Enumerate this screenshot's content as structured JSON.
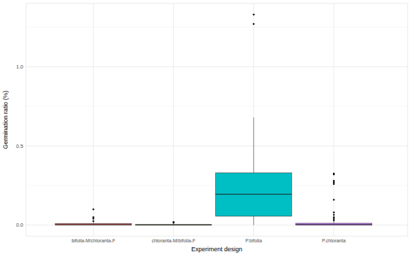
{
  "chart_data": {
    "type": "boxplot",
    "x_label": "Experiment design",
    "y_label": "Germination ratio (%)",
    "categories": [
      "bifolia-M/chloranta-F",
      "chloranta-M/bifolia-F",
      "P.bifolia",
      "P.chloranta"
    ],
    "colors": [
      "#F8766D",
      "#7CAE00",
      "#00BFC4",
      "#C77CFF"
    ],
    "boxes": [
      {
        "min": 0,
        "q1": 0,
        "median": 0.003,
        "q3": 0.01,
        "max": 0.02,
        "outliers": [
          0.1,
          0.05,
          0.04,
          0.025
        ]
      },
      {
        "min": 0,
        "q1": 0,
        "median": 0.001,
        "q3": 0.004,
        "max": 0.008,
        "outliers": [
          0.02,
          0.015
        ]
      },
      {
        "min": 0,
        "q1": 0.056,
        "median": 0.195,
        "q3": 0.33,
        "max": 0.68,
        "outliers": [
          1.33,
          1.27
        ]
      },
      {
        "min": 0,
        "q1": 0,
        "median": 0.003,
        "q3": 0.012,
        "max": 0.025,
        "outliers": [
          0.325,
          0.32,
          0.28,
          0.27,
          0.26,
          0.16,
          0.08,
          0.065,
          0.05,
          0.04,
          0.03
        ]
      }
    ],
    "ylim": [
      -0.07,
      1.4
    ],
    "yticks": [
      {
        "value": 0,
        "label": "0.0"
      },
      {
        "value": 0.5,
        "label": "0.5"
      },
      {
        "value": 1,
        "label": "1.0"
      }
    ],
    "grid": true
  }
}
